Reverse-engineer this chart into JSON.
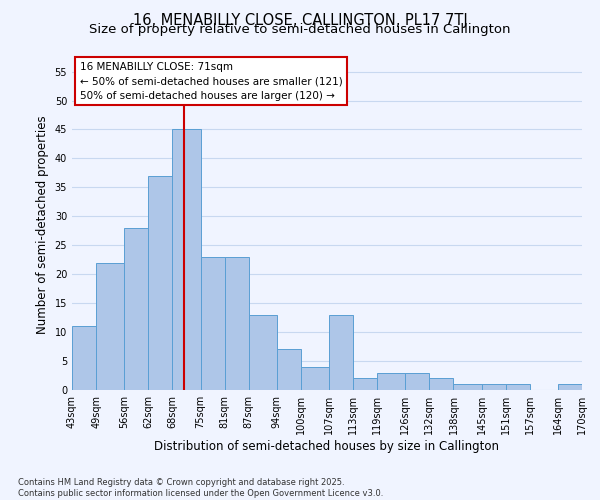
{
  "title": "16, MENABILLY CLOSE, CALLINGTON, PL17 7TJ",
  "subtitle": "Size of property relative to semi-detached houses in Callington",
  "xlabel": "Distribution of semi-detached houses by size in Callington",
  "ylabel": "Number of semi-detached properties",
  "bin_labels": [
    "43sqm",
    "49sqm",
    "56sqm",
    "62sqm",
    "68sqm",
    "75sqm",
    "81sqm",
    "87sqm",
    "94sqm",
    "100sqm",
    "107sqm",
    "113sqm",
    "119sqm",
    "126sqm",
    "132sqm",
    "138sqm",
    "145sqm",
    "151sqm",
    "157sqm",
    "164sqm",
    "170sqm"
  ],
  "bin_edges": [
    43,
    49,
    56,
    62,
    68,
    75,
    81,
    87,
    94,
    100,
    107,
    113,
    119,
    126,
    132,
    138,
    145,
    151,
    157,
    164,
    170
  ],
  "bar_heights": [
    11,
    22,
    28,
    37,
    45,
    23,
    23,
    13,
    7,
    4,
    13,
    2,
    3,
    3,
    2,
    1,
    1,
    1,
    0,
    1
  ],
  "bar_color": "#aec6e8",
  "bar_edge_color": "#5a9fd4",
  "grid_color": "#c8d8f0",
  "vline_x": 71,
  "vline_color": "#cc0000",
  "ylim": [
    0,
    57
  ],
  "yticks": [
    0,
    5,
    10,
    15,
    20,
    25,
    30,
    35,
    40,
    45,
    50,
    55
  ],
  "annotation_box_text": "16 MENABILLY CLOSE: 71sqm\n← 50% of semi-detached houses are smaller (121)\n50% of semi-detached houses are larger (120) →",
  "footnote": "Contains HM Land Registry data © Crown copyright and database right 2025.\nContains public sector information licensed under the Open Government Licence v3.0.",
  "background_color": "#f0f4ff",
  "title_fontsize": 10.5,
  "subtitle_fontsize": 9.5,
  "label_fontsize": 8.5,
  "tick_fontsize": 7,
  "annot_fontsize": 7.5
}
